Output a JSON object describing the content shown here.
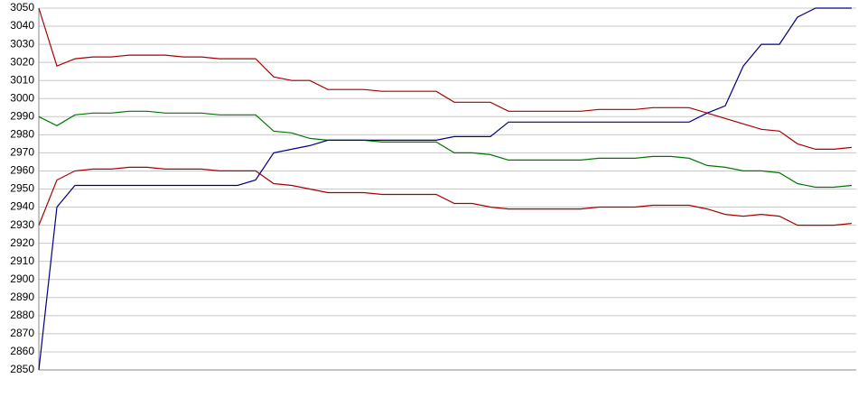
{
  "chart_data": {
    "type": "line",
    "ylim": [
      2850,
      3050
    ],
    "yticks": [
      2850,
      2860,
      2870,
      2880,
      2890,
      2900,
      2910,
      2920,
      2930,
      2940,
      2950,
      2960,
      2970,
      2980,
      2990,
      3000,
      3010,
      3020,
      3030,
      3040,
      3050
    ],
    "grid": true,
    "series": [
      {
        "color": "#aa0000",
        "values": [
          3050,
          3018,
          3022,
          3023,
          3023,
          3024,
          3024,
          3024,
          3023,
          3023,
          3022,
          3022,
          3022,
          3012,
          3010,
          3010,
          3005,
          3005,
          3005,
          3004,
          3004,
          3004,
          3004,
          2998,
          2998,
          2998,
          2993,
          2993,
          2993,
          2993,
          2993,
          2994,
          2994,
          2994,
          2995,
          2995,
          2995,
          2992,
          2989,
          2986,
          2983,
          2982,
          2975,
          2972,
          2972,
          2973
        ]
      },
      {
        "color": "#007700",
        "values": [
          2990,
          2985,
          2991,
          2992,
          2992,
          2993,
          2993,
          2992,
          2992,
          2992,
          2991,
          2991,
          2991,
          2982,
          2981,
          2978,
          2977,
          2977,
          2977,
          2976,
          2976,
          2976,
          2976,
          2970,
          2970,
          2969,
          2966,
          2966,
          2966,
          2966,
          2966,
          2967,
          2967,
          2967,
          2968,
          2968,
          2967,
          2963,
          2962,
          2960,
          2960,
          2959,
          2953,
          2951,
          2951,
          2952
        ]
      },
      {
        "color": "#aa0000",
        "values": [
          2930,
          2955,
          2960,
          2961,
          2961,
          2962,
          2962,
          2961,
          2961,
          2961,
          2960,
          2960,
          2960,
          2953,
          2952,
          2950,
          2948,
          2948,
          2948,
          2947,
          2947,
          2947,
          2947,
          2942,
          2942,
          2940,
          2939,
          2939,
          2939,
          2939,
          2939,
          2940,
          2940,
          2940,
          2941,
          2941,
          2941,
          2939,
          2936,
          2935,
          2936,
          2935,
          2930,
          2930,
          2930,
          2931
        ]
      },
      {
        "color": "#000088",
        "values": [
          2850,
          2940,
          2952,
          2952,
          2952,
          2952,
          2952,
          2952,
          2952,
          2952,
          2952,
          2952,
          2955,
          2970,
          2972,
          2974,
          2977,
          2977,
          2977,
          2977,
          2977,
          2977,
          2977,
          2979,
          2979,
          2979,
          2987,
          2987,
          2987,
          2987,
          2987,
          2987,
          2987,
          2987,
          2987,
          2987,
          2987,
          2992,
          2996,
          3018,
          3030,
          3030,
          3045,
          3050,
          3050,
          3050
        ]
      }
    ]
  }
}
